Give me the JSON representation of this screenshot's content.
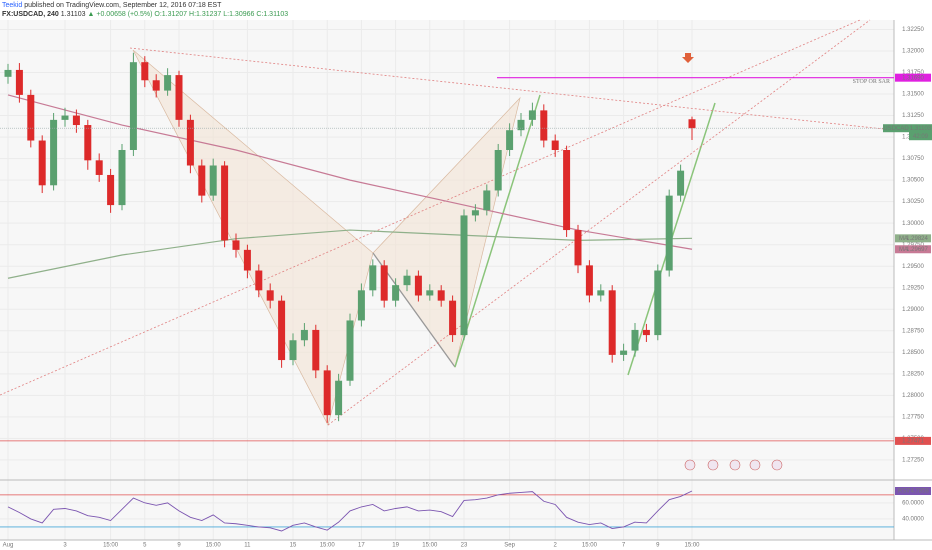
{
  "header": {
    "publisher": "Teekid",
    "published": "published on TradingView.com, September 12, 2016 07:18 EST",
    "symbol": "FX:USDCAD, 240",
    "last": "1.31103",
    "change": "▲ +0.00658 (+0.5%)",
    "ohlc": "O:1.31207 H:1.31237 L:1.30966 C:1.31103"
  },
  "chart_data": [
    {
      "type": "candlestick",
      "symbol_label": "USDCAD",
      "countdown": "42:09",
      "up_color": "#5aa06f",
      "down_color": "#dd2a2a",
      "categories": [
        "Aug",
        null,
        null,
        null,
        null,
        "3",
        null,
        null,
        null,
        "15:00",
        null,
        null,
        "5",
        null,
        null,
        "9",
        null,
        null,
        "15:00",
        null,
        null,
        "11",
        null,
        null,
        null,
        "15",
        null,
        null,
        "15:00",
        null,
        null,
        "17",
        null,
        null,
        "19",
        null,
        null,
        "15:00",
        null,
        null,
        "23",
        null,
        null,
        null,
        "Sep",
        null,
        null,
        null,
        "2",
        null,
        null,
        "15:00",
        null,
        null,
        "7",
        null,
        null,
        "9",
        null,
        null,
        "15:00"
      ],
      "open": [
        1.317,
        1.3178,
        1.3149,
        1.3096,
        1.3044,
        1.312,
        1.3125,
        1.3114,
        1.3073,
        1.3056,
        1.3021,
        1.3085,
        1.3187,
        1.3166,
        1.3154,
        1.3172,
        1.312,
        1.3067,
        1.3032,
        1.3067,
        1.298,
        1.2969,
        1.2945,
        1.2922,
        1.291,
        1.2841,
        1.2864,
        1.2876,
        1.2829,
        1.2777,
        1.2817,
        1.2887,
        1.2922,
        1.2951,
        1.291,
        1.2928,
        1.2939,
        1.2916,
        1.2922,
        1.291,
        1.287,
        1.3009,
        1.3015,
        1.3038,
        1.3085,
        1.3108,
        1.312,
        1.3131,
        1.3096,
        1.3085,
        1.2992,
        1.2951,
        1.2916,
        1.2922,
        1.2847,
        1.2852,
        1.2876,
        1.287,
        1.2945,
        1.3032,
        1.31207
      ],
      "high": [
        1.3185,
        1.3186,
        1.3155,
        1.3102,
        1.3128,
        1.3134,
        1.3132,
        1.312,
        1.3081,
        1.3063,
        1.3092,
        1.3198,
        1.3194,
        1.3173,
        1.318,
        1.3177,
        1.3126,
        1.3074,
        1.3075,
        1.3072,
        1.2988,
        1.2975,
        1.2952,
        1.293,
        1.2916,
        1.2872,
        1.2884,
        1.2882,
        1.2835,
        1.2825,
        1.2895,
        1.293,
        1.2958,
        1.2957,
        1.2936,
        1.2946,
        1.2945,
        1.2929,
        1.2928,
        1.2916,
        1.3016,
        1.3022,
        1.3045,
        1.3092,
        1.3116,
        1.3128,
        1.314,
        1.3138,
        1.3103,
        1.309,
        1.2998,
        1.2957,
        1.2929,
        1.2928,
        1.286,
        1.2884,
        1.2883,
        1.2952,
        1.3039,
        1.3068,
        1.31237
      ],
      "low": [
        1.3162,
        1.314,
        1.3088,
        1.3035,
        1.3038,
        1.3112,
        1.3105,
        1.3062,
        1.3048,
        1.3012,
        1.3015,
        1.3078,
        1.3158,
        1.3146,
        1.3148,
        1.3112,
        1.3058,
        1.3024,
        1.3026,
        1.2972,
        1.296,
        1.2936,
        1.2914,
        1.2901,
        1.2832,
        1.2835,
        1.2857,
        1.282,
        1.2768,
        1.277,
        1.2811,
        1.288,
        1.2915,
        1.2902,
        1.2903,
        1.2921,
        1.2909,
        1.291,
        1.2903,
        1.2862,
        1.2864,
        1.3002,
        1.3009,
        1.3031,
        1.3078,
        1.3101,
        1.3113,
        1.3088,
        1.3077,
        1.2984,
        1.2942,
        1.2908,
        1.2909,
        1.2838,
        1.284,
        1.2845,
        1.2862,
        1.2864,
        1.2938,
        1.3025,
        1.30966
      ],
      "close": [
        1.3178,
        1.3149,
        1.3096,
        1.3044,
        1.312,
        1.3125,
        1.3114,
        1.3073,
        1.3056,
        1.3021,
        1.3085,
        1.3187,
        1.3166,
        1.3154,
        1.3172,
        1.312,
        1.3067,
        1.3032,
        1.3067,
        1.298,
        1.2969,
        1.2945,
        1.2922,
        1.291,
        1.2841,
        1.2864,
        1.2876,
        1.2829,
        1.2777,
        1.2817,
        1.2887,
        1.2922,
        1.2951,
        1.291,
        1.2928,
        1.2939,
        1.2916,
        1.2922,
        1.291,
        1.287,
        1.3009,
        1.3015,
        1.3038,
        1.3085,
        1.3108,
        1.312,
        1.3131,
        1.3096,
        1.3085,
        1.2992,
        1.2951,
        1.2916,
        1.2922,
        1.2847,
        1.2852,
        1.2876,
        1.287,
        1.2945,
        1.3032,
        1.3061,
        1.31103
      ],
      "last_price": 1.31103,
      "series": [
        {
          "name": "MA",
          "color": "#8fb08a",
          "x": [
            0,
            10,
            20,
            30,
            40,
            50,
            60
          ],
          "values": [
            1.2936,
            1.2963,
            1.2982,
            1.2992,
            1.2986,
            1.298,
            1.29824
          ]
        },
        {
          "name": "MA",
          "color": "#c77a95",
          "x": [
            0,
            10,
            20,
            30,
            40,
            50,
            60
          ],
          "values": [
            1.3149,
            1.3114,
            1.3085,
            1.305,
            1.3021,
            1.2992,
            1.29697
          ]
        }
      ],
      "stop_level": {
        "value": 1.3169,
        "label": "1.31690",
        "text": "STOP OR SAR",
        "color": "#e020e0"
      },
      "support_level": {
        "value": 1.27471,
        "color": "#e05050"
      },
      "ylim": [
        1.2704,
        1.3236
      ],
      "yticks": [
        {
          "value": 1.2725,
          "label": "1.27250"
        },
        {
          "value": 1.275,
          "label": "1.27500"
        },
        {
          "value": 1.2775,
          "label": "1.27750"
        },
        {
          "value": 1.28,
          "label": "1.28000"
        },
        {
          "value": 1.2825,
          "label": "1.28250"
        },
        {
          "value": 1.285,
          "label": "1.28500"
        },
        {
          "value": 1.2875,
          "label": "1.28750"
        },
        {
          "value": 1.29,
          "label": "1.29000"
        },
        {
          "value": 1.2925,
          "label": "1.29250"
        },
        {
          "value": 1.295,
          "label": "1.29500"
        },
        {
          "value": 1.2975,
          "label": "1.29750"
        },
        {
          "value": 1.3,
          "label": "1.30000"
        },
        {
          "value": 1.3025,
          "label": "1.30250"
        },
        {
          "value": 1.305,
          "label": "1.30500"
        },
        {
          "value": 1.3075,
          "label": "1.30750"
        },
        {
          "value": 1.31,
          "label": "1.31000"
        },
        {
          "value": 1.3125,
          "label": "1.31250"
        },
        {
          "value": 1.315,
          "label": "1.31500"
        },
        {
          "value": 1.3175,
          "label": "1.31750"
        },
        {
          "value": 1.32,
          "label": "1.32000"
        },
        {
          "value": 1.3225,
          "label": "1.32250"
        }
      ],
      "grid": true
    },
    {
      "type": "line",
      "name": "RSI",
      "color": "#7b55b0",
      "values": [
        55,
        48,
        40,
        35,
        52,
        53,
        50,
        44,
        42,
        38,
        52,
        66,
        60,
        57,
        60,
        50,
        42,
        38,
        45,
        35,
        34,
        32,
        30,
        29,
        25,
        32,
        35,
        30,
        26,
        36,
        50,
        55,
        58,
        50,
        53,
        55,
        50,
        51,
        49,
        43,
        63,
        64,
        66,
        70,
        72,
        73,
        74,
        62,
        58,
        42,
        36,
        33,
        35,
        28,
        30,
        36,
        35,
        50,
        64,
        68,
        74.7858
      ],
      "levels": [
        30,
        70
      ],
      "ylim": [
        15,
        86
      ],
      "yticks": [
        {
          "value": 40,
          "label": "40.0000"
        },
        {
          "value": 60,
          "label": "60.0000"
        }
      ]
    }
  ]
}
